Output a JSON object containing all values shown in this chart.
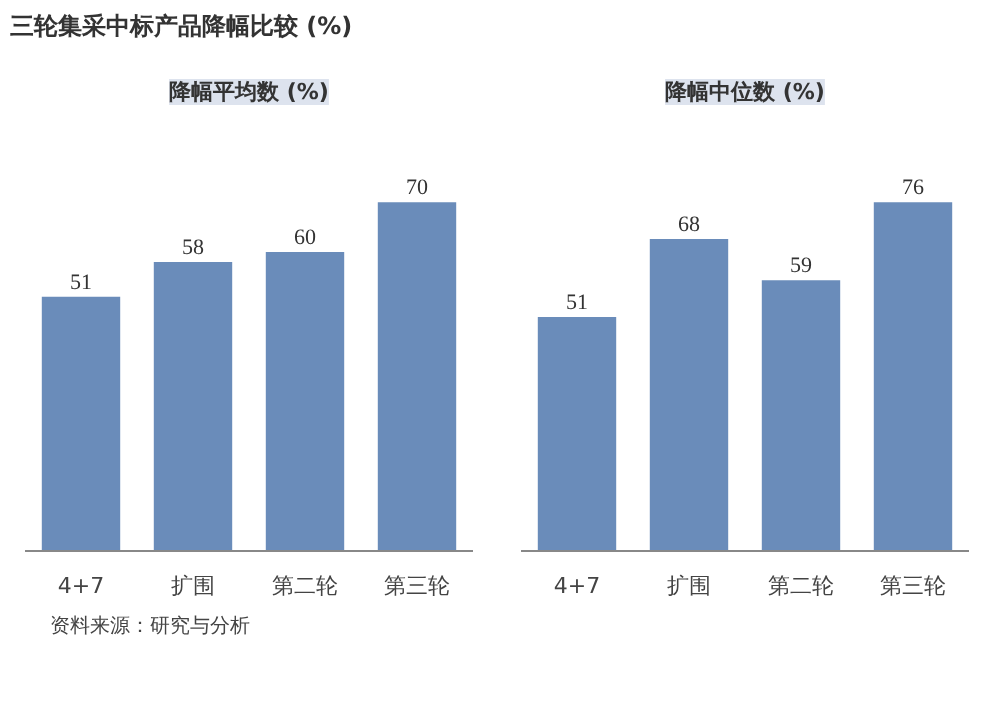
{
  "chart_data": [
    {
      "type": "bar",
      "title": "三轮集采中标产品降幅比较 (%)",
      "subtitle": "降幅平均数 (%)",
      "categories": [
        "4+7",
        "扩围",
        "第二轮",
        "第三轮"
      ],
      "values": [
        51,
        58,
        60,
        70
      ],
      "color": "#6a8cba",
      "data_labels": true,
      "annotations": [
        "资料来源：研究与分析"
      ]
    },
    {
      "type": "bar",
      "subtitle": "降幅中位数 (%)",
      "categories": [
        "4+7",
        "扩围",
        "第二轮",
        "第三轮"
      ],
      "values": [
        51,
        68,
        59,
        76
      ],
      "color": "#6a8cba",
      "data_labels": true
    }
  ]
}
